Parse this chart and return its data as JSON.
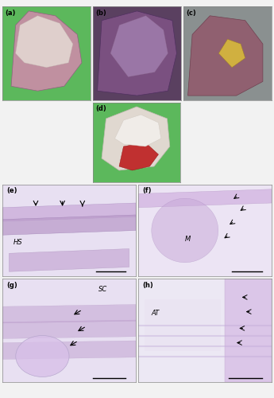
{
  "figure_title": "",
  "background_color": "#f0f0f0",
  "panel_bg": "#f0f0f0",
  "panels": [
    {
      "label": "(a)",
      "row": 0,
      "col": 0,
      "colspan": 1,
      "color_top": "#8B7B8B",
      "color_mid": "#c8a0a0",
      "bg": "#6aaa5a"
    },
    {
      "label": "(b)",
      "row": 0,
      "col": 1,
      "colspan": 1,
      "color_top": "#6a5a7a",
      "color_mid": "#8a6a8a",
      "bg": "#6a5a7a"
    },
    {
      "label": "(c)",
      "row": 0,
      "col": 2,
      "colspan": 1,
      "color_top": "#8a6a7a",
      "color_mid": "#9a7a8a",
      "bg": "#8a9a9a"
    },
    {
      "label": "(d)",
      "row": 1,
      "col": 1,
      "colspan": 1,
      "color_top": "#e0d8d0",
      "color_mid": "#c05050",
      "bg": "#5aaa5a"
    },
    {
      "label": "(e)",
      "row": 2,
      "col": 0,
      "colspan": 1,
      "color_top": "#d8cce0",
      "color_mid": "#c8b8d8",
      "bg": "#ffffff",
      "text": "HS"
    },
    {
      "label": "(f)",
      "row": 2,
      "col": 1,
      "colspan": 1,
      "color_top": "#d8cce0",
      "color_mid": "#c8b8d8",
      "bg": "#ffffff",
      "text": "M"
    },
    {
      "label": "(g)",
      "row": 3,
      "col": 0,
      "colspan": 1,
      "color_top": "#d8cce0",
      "color_mid": "#c8b8d8",
      "bg": "#ffffff",
      "text": "SC"
    },
    {
      "label": "(h)",
      "row": 3,
      "col": 1,
      "colspan": 1,
      "color_top": "#d8cce0",
      "color_mid": "#c8b8d8",
      "bg": "#ffffff",
      "text": "AT"
    }
  ],
  "image_colors": {
    "a_bg": "#5cb85c",
    "a_organ": "#c8a0b0",
    "b_bg": "#7a5a8a",
    "b_organ": "#a07890",
    "c_bg": "#8a9a9a",
    "c_organ": "#905070",
    "d_bg": "#5cb85c",
    "d_organ": "#e8e0d8",
    "histo_bg": "#e8e0f0",
    "histo_tissue": "#c8b0d8",
    "histo_dark": "#8060a0"
  }
}
